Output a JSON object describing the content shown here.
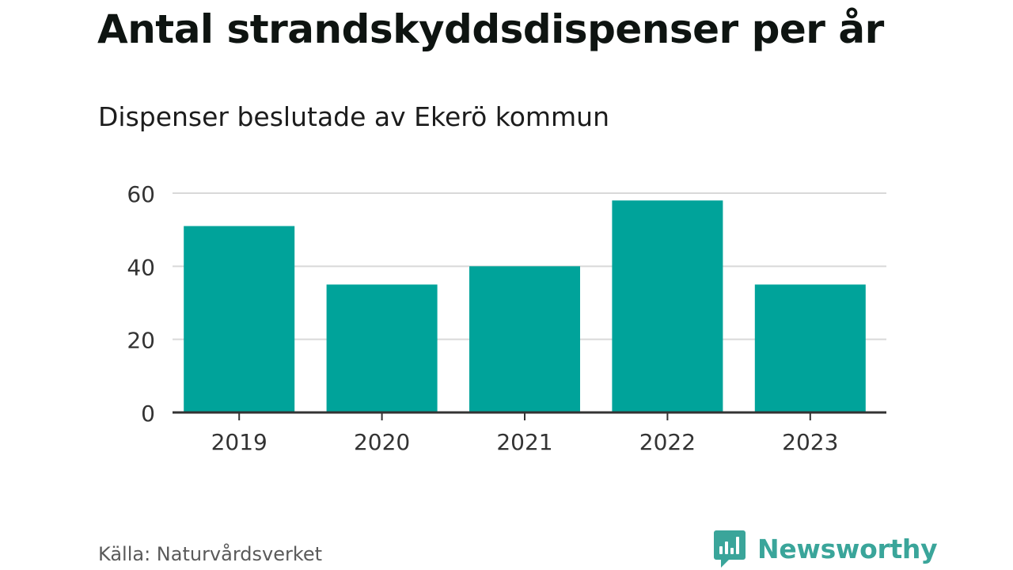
{
  "header": {
    "title": "Antal strandskyddsdispenser per år",
    "subtitle": "Dispenser beslutade av Ekerö kommun"
  },
  "footer": {
    "source": "Källa: Naturvårdsverket",
    "brand": "Newsworthy"
  },
  "colors": {
    "bar": "#00a39a",
    "grid": "#d9d9d9",
    "axis": "#333333",
    "brand": "#3aa59a"
  },
  "chart_data": {
    "type": "bar",
    "title": "Antal strandskyddsdispenser per år",
    "subtitle": "Dispenser beslutade av Ekerö kommun",
    "xlabel": "",
    "ylabel": "",
    "categories": [
      "2019",
      "2020",
      "2021",
      "2022",
      "2023"
    ],
    "values": [
      51,
      35,
      40,
      58,
      35
    ],
    "ylim": [
      0,
      60
    ],
    "yticks": [
      "0",
      "20",
      "40",
      "60"
    ],
    "grid": true,
    "legend": "none"
  }
}
